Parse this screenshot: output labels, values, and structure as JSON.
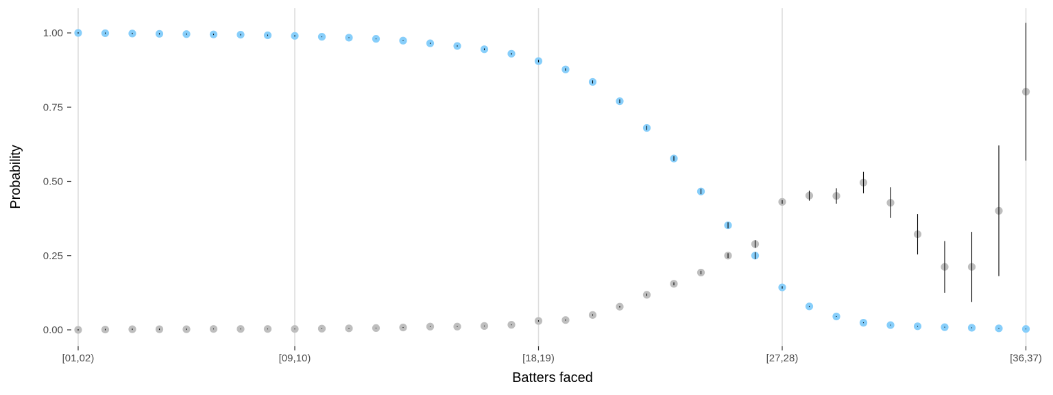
{
  "chart_data": {
    "type": "scatter",
    "xlabel": "Batters faced",
    "ylabel": "Probability",
    "ylim": [
      -0.04,
      1.08
    ],
    "grid": "vertical-major-only",
    "legend": "none",
    "x_tick_labels": [
      "[01,02)",
      "[09,10)",
      "[18,19)",
      "[27,28)",
      "[36,37)"
    ],
    "x_tick_positions": [
      1,
      9,
      18,
      27,
      36
    ],
    "y_tick_labels": [
      "0.00",
      "0.25",
      "0.50",
      "0.75",
      "1.00"
    ],
    "y_tick_values": [
      0,
      0.25,
      0.5,
      0.75,
      1.0
    ],
    "colors": {
      "blue": "#87cefa",
      "grey": "#bebebe",
      "errorbar": "#000000",
      "grid": "#dedede"
    },
    "series": [
      {
        "color": "#87cefa",
        "points": [
          {
            "x": 1,
            "y": 1.0,
            "lo": 1.0,
            "hi": 1.0
          },
          {
            "x": 2,
            "y": 0.999,
            "lo": 0.999,
            "hi": 0.999
          },
          {
            "x": 3,
            "y": 0.998,
            "lo": 0.998,
            "hi": 0.998
          },
          {
            "x": 4,
            "y": 0.997,
            "lo": 0.997,
            "hi": 0.997
          },
          {
            "x": 5,
            "y": 0.996,
            "lo": 0.996,
            "hi": 0.996
          },
          {
            "x": 6,
            "y": 0.995,
            "lo": 0.995,
            "hi": 0.995
          },
          {
            "x": 7,
            "y": 0.994,
            "lo": 0.994,
            "hi": 0.994
          },
          {
            "x": 8,
            "y": 0.992,
            "lo": 0.992,
            "hi": 0.992
          },
          {
            "x": 9,
            "y": 0.99,
            "lo": 0.99,
            "hi": 0.99
          },
          {
            "x": 10,
            "y": 0.987,
            "lo": 0.986,
            "hi": 0.988
          },
          {
            "x": 11,
            "y": 0.984,
            "lo": 0.983,
            "hi": 0.985
          },
          {
            "x": 12,
            "y": 0.98,
            "lo": 0.979,
            "hi": 0.981
          },
          {
            "x": 13,
            "y": 0.974,
            "lo": 0.973,
            "hi": 0.975
          },
          {
            "x": 14,
            "y": 0.965,
            "lo": 0.963,
            "hi": 0.967
          },
          {
            "x": 15,
            "y": 0.956,
            "lo": 0.954,
            "hi": 0.958
          },
          {
            "x": 16,
            "y": 0.945,
            "lo": 0.942,
            "hi": 0.948
          },
          {
            "x": 17,
            "y": 0.93,
            "lo": 0.927,
            "hi": 0.933
          },
          {
            "x": 18,
            "y": 0.905,
            "lo": 0.901,
            "hi": 0.909
          },
          {
            "x": 19,
            "y": 0.877,
            "lo": 0.873,
            "hi": 0.881
          },
          {
            "x": 20,
            "y": 0.835,
            "lo": 0.83,
            "hi": 0.84
          },
          {
            "x": 21,
            "y": 0.77,
            "lo": 0.764,
            "hi": 0.776
          },
          {
            "x": 22,
            "y": 0.68,
            "lo": 0.673,
            "hi": 0.687
          },
          {
            "x": 23,
            "y": 0.577,
            "lo": 0.569,
            "hi": 0.585
          },
          {
            "x": 24,
            "y": 0.466,
            "lo": 0.457,
            "hi": 0.475
          },
          {
            "x": 25,
            "y": 0.352,
            "lo": 0.342,
            "hi": 0.362
          },
          {
            "x": 26,
            "y": 0.25,
            "lo": 0.238,
            "hi": 0.262
          },
          {
            "x": 27,
            "y": 0.143,
            "lo": 0.139,
            "hi": 0.147
          },
          {
            "x": 28,
            "y": 0.079,
            "lo": 0.077,
            "hi": 0.081
          },
          {
            "x": 29,
            "y": 0.045,
            "lo": 0.044,
            "hi": 0.046
          },
          {
            "x": 30,
            "y": 0.024,
            "lo": 0.023,
            "hi": 0.025
          },
          {
            "x": 31,
            "y": 0.016,
            "lo": 0.015,
            "hi": 0.017
          },
          {
            "x": 32,
            "y": 0.012,
            "lo": 0.011,
            "hi": 0.013
          },
          {
            "x": 33,
            "y": 0.009,
            "lo": 0.008,
            "hi": 0.01
          },
          {
            "x": 34,
            "y": 0.007,
            "lo": 0.006,
            "hi": 0.008
          },
          {
            "x": 35,
            "y": 0.005,
            "lo": 0.004,
            "hi": 0.006
          },
          {
            "x": 36,
            "y": 0.003,
            "lo": 0.002,
            "hi": 0.004
          }
        ]
      },
      {
        "color": "#bebebe",
        "points": [
          {
            "x": 1,
            "y": 0.0,
            "lo": 0.0,
            "hi": 0.0
          },
          {
            "x": 2,
            "y": 0.001,
            "lo": 0.001,
            "hi": 0.001
          },
          {
            "x": 3,
            "y": 0.002,
            "lo": 0.002,
            "hi": 0.002
          },
          {
            "x": 4,
            "y": 0.002,
            "lo": 0.002,
            "hi": 0.002
          },
          {
            "x": 5,
            "y": 0.002,
            "lo": 0.002,
            "hi": 0.002
          },
          {
            "x": 6,
            "y": 0.003,
            "lo": 0.002,
            "hi": 0.004
          },
          {
            "x": 7,
            "y": 0.003,
            "lo": 0.002,
            "hi": 0.004
          },
          {
            "x": 8,
            "y": 0.003,
            "lo": 0.002,
            "hi": 0.004
          },
          {
            "x": 9,
            "y": 0.003,
            "lo": 0.002,
            "hi": 0.004
          },
          {
            "x": 10,
            "y": 0.004,
            "lo": 0.003,
            "hi": 0.005
          },
          {
            "x": 11,
            "y": 0.005,
            "lo": 0.004,
            "hi": 0.006
          },
          {
            "x": 12,
            "y": 0.006,
            "lo": 0.005,
            "hi": 0.007
          },
          {
            "x": 13,
            "y": 0.008,
            "lo": 0.007,
            "hi": 0.009
          },
          {
            "x": 14,
            "y": 0.011,
            "lo": 0.01,
            "hi": 0.012
          },
          {
            "x": 15,
            "y": 0.011,
            "lo": 0.01,
            "hi": 0.012
          },
          {
            "x": 16,
            "y": 0.013,
            "lo": 0.012,
            "hi": 0.014
          },
          {
            "x": 17,
            "y": 0.017,
            "lo": 0.016,
            "hi": 0.018
          },
          {
            "x": 18,
            "y": 0.03,
            "lo": 0.028,
            "hi": 0.032
          },
          {
            "x": 19,
            "y": 0.033,
            "lo": 0.031,
            "hi": 0.035
          },
          {
            "x": 20,
            "y": 0.05,
            "lo": 0.048,
            "hi": 0.052
          },
          {
            "x": 21,
            "y": 0.078,
            "lo": 0.075,
            "hi": 0.081
          },
          {
            "x": 22,
            "y": 0.118,
            "lo": 0.114,
            "hi": 0.122
          },
          {
            "x": 23,
            "y": 0.155,
            "lo": 0.15,
            "hi": 0.16
          },
          {
            "x": 24,
            "y": 0.193,
            "lo": 0.187,
            "hi": 0.199
          },
          {
            "x": 25,
            "y": 0.25,
            "lo": 0.242,
            "hi": 0.258
          },
          {
            "x": 26,
            "y": 0.289,
            "lo": 0.276,
            "hi": 0.302
          },
          {
            "x": 27,
            "y": 0.431,
            "lo": 0.425,
            "hi": 0.437
          },
          {
            "x": 28,
            "y": 0.452,
            "lo": 0.435,
            "hi": 0.469
          },
          {
            "x": 29,
            "y": 0.451,
            "lo": 0.425,
            "hi": 0.477
          },
          {
            "x": 30,
            "y": 0.496,
            "lo": 0.46,
            "hi": 0.532
          },
          {
            "x": 31,
            "y": 0.428,
            "lo": 0.377,
            "hi": 0.48
          },
          {
            "x": 32,
            "y": 0.322,
            "lo": 0.254,
            "hi": 0.39
          },
          {
            "x": 33,
            "y": 0.212,
            "lo": 0.125,
            "hi": 0.299
          },
          {
            "x": 34,
            "y": 0.212,
            "lo": 0.094,
            "hi": 0.33
          },
          {
            "x": 35,
            "y": 0.401,
            "lo": 0.181,
            "hi": 0.621
          },
          {
            "x": 36,
            "y": 0.802,
            "lo": 0.57,
            "hi": 1.034
          }
        ]
      }
    ]
  }
}
